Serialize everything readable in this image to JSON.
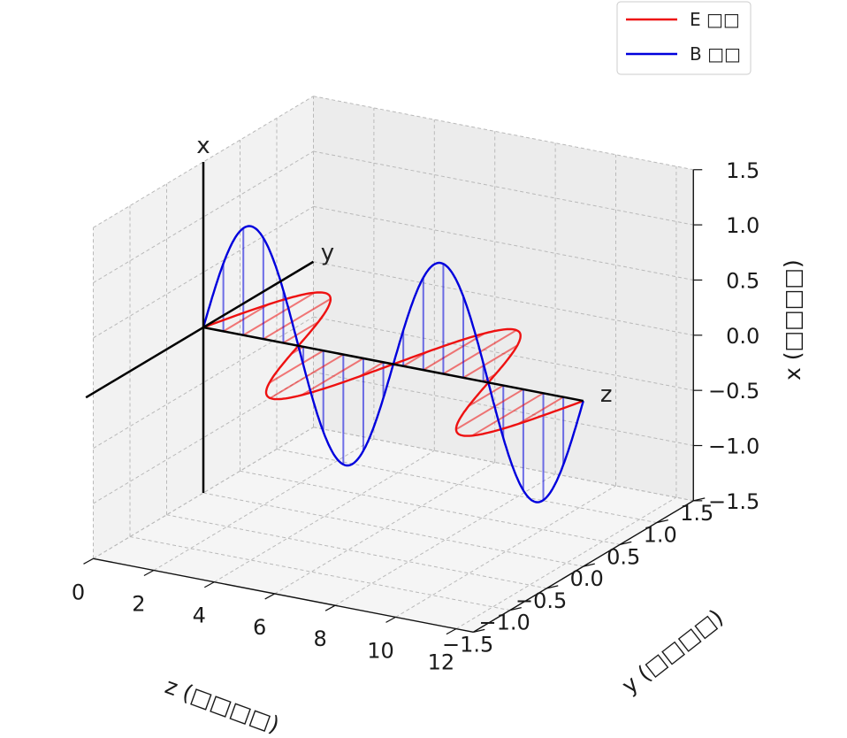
{
  "chart_data": {
    "type": "line",
    "projection": "3d",
    "grid": true,
    "legend_position": "top-right",
    "axes": {
      "z": {
        "label": "z (□□□□)",
        "ticks": [
          0,
          2,
          4,
          6,
          8,
          10,
          12
        ],
        "lim": [
          0,
          12.566
        ]
      },
      "y": {
        "label": "y (□□□□)",
        "ticks": [
          -1.5,
          -1.0,
          -0.5,
          0.0,
          0.5,
          1.0,
          1.5
        ],
        "lim": [
          -1.5,
          1.5
        ]
      },
      "x": {
        "label": "x (□□□□)",
        "ticks": [
          -1.5,
          -1.0,
          -0.5,
          0.0,
          0.5,
          1.0,
          1.5
        ],
        "lim": [
          -1.5,
          1.5
        ]
      }
    },
    "reference_axes": [
      {
        "name": "x",
        "label": "x"
      },
      {
        "name": "y",
        "label": "y"
      },
      {
        "name": "z",
        "label": "z"
      }
    ],
    "series": [
      {
        "name": "E □□",
        "color": "#ee1111",
        "plane": "z-y",
        "amplitude": 1.0,
        "wavelength": 6.2832,
        "z_range": [
          0,
          12.566
        ],
        "formula": "y = sin(z)"
      },
      {
        "name": "B □□",
        "color": "#0000dd",
        "plane": "z-x",
        "amplitude": 1.0,
        "wavelength": 6.2832,
        "z_range": [
          0,
          12.566
        ],
        "formula": "x = sin(z)"
      }
    ]
  }
}
